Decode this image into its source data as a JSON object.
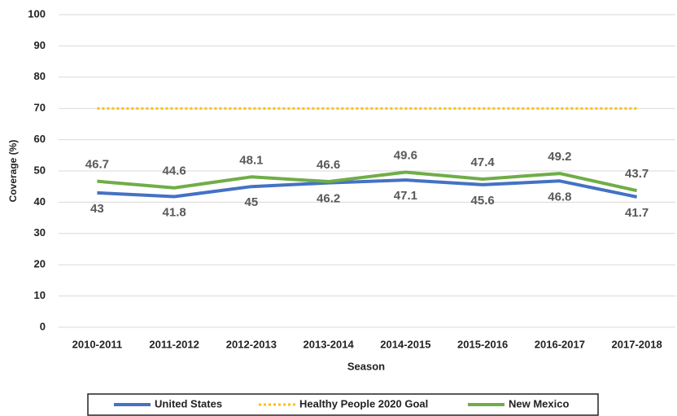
{
  "chart_data": {
    "type": "line",
    "x_label": "Season",
    "y_label": "Coverage (%)",
    "categories": [
      "2010-2011",
      "2011-2012",
      "2012-2013",
      "2013-2014",
      "2014-2015",
      "2015-2016",
      "2016-2017",
      "2017-2018"
    ],
    "series": [
      {
        "name": "United States",
        "color": "#4472c4",
        "style": "solid",
        "label_position": "below",
        "values": [
          43,
          41.8,
          45,
          46.2,
          47.1,
          45.6,
          46.8,
          41.7
        ]
      },
      {
        "name": "Healthy People 2020 Goal",
        "color": "#ffc000",
        "style": "dotted",
        "values": [
          70,
          70,
          70,
          70,
          70,
          70,
          70,
          70
        ]
      },
      {
        "name": "New Mexico",
        "color": "#70ad47",
        "style": "solid",
        "label_position": "above",
        "values": [
          46.7,
          44.6,
          48.1,
          46.6,
          49.6,
          47.4,
          49.2,
          43.7
        ]
      }
    ],
    "ylim": [
      0,
      100
    ],
    "yticks": [
      0,
      10,
      20,
      30,
      40,
      50,
      60,
      70,
      80,
      90,
      100
    ],
    "grid": true,
    "legend": "bottom"
  }
}
